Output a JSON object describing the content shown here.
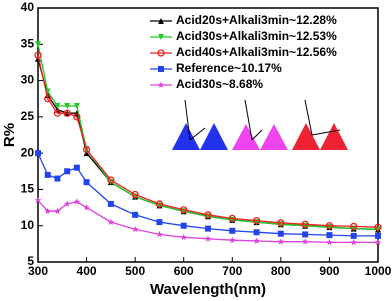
{
  "chart_data": {
    "type": "line",
    "x_label": "Wavelength(nm)",
    "y_label": "R%",
    "x": [
      300,
      320,
      340,
      360,
      380,
      400,
      450,
      500,
      550,
      600,
      650,
      700,
      750,
      800,
      850,
      900,
      950,
      1000
    ],
    "series": [
      {
        "name": "Acid20s+Alkali3min~12.28%",
        "color": "#000000",
        "marker": "triangle-up",
        "values": [
          33,
          28,
          26,
          25.5,
          25.5,
          20,
          16,
          14,
          12.8,
          12,
          11.3,
          10.8,
          10.5,
          10.2,
          10,
          9.8,
          9.6,
          9.5
        ]
      },
      {
        "name": "Acid30s+Alkali3min~12.53%",
        "color": "#22cc22",
        "marker": "triangle-down",
        "values": [
          35,
          28.5,
          26.5,
          26.5,
          26.5,
          20.5,
          16,
          14,
          12.8,
          12,
          11.3,
          10.8,
          10.5,
          10.2,
          10,
          9.8,
          9.6,
          9.5
        ]
      },
      {
        "name": "Acid40s+Alkali3min~12.56%",
        "color": "#ee2222",
        "marker": "circle",
        "values": [
          33.5,
          27.5,
          25.5,
          25.5,
          25,
          20.5,
          16.3,
          14.3,
          13,
          12.2,
          11.5,
          11,
          10.7,
          10.4,
          10.2,
          10,
          9.9,
          9.8
        ]
      },
      {
        "name": "Reference~10.17%",
        "color": "#2244ee",
        "marker": "square",
        "values": [
          20,
          17,
          16.5,
          17.5,
          18,
          16,
          13,
          11.5,
          10.5,
          10,
          9.6,
          9.3,
          9.1,
          8.9,
          8.8,
          8.7,
          8.6,
          8.6
        ]
      },
      {
        "name": "Acid30s~8.68%",
        "color": "#dd44dd",
        "marker": "star",
        "values": [
          13.5,
          12,
          12,
          13,
          13.3,
          12.5,
          10.5,
          9.5,
          8.8,
          8.4,
          8.2,
          8.0,
          7.9,
          7.8,
          7.8,
          7.7,
          7.7,
          7.7
        ]
      }
    ],
    "xlim": [
      300,
      1000
    ],
    "xticks": [
      300,
      400,
      500,
      600,
      700,
      800,
      900,
      1000
    ],
    "ylim": [
      5,
      40
    ],
    "yticks": [
      5,
      10,
      15,
      20,
      25,
      30,
      35,
      40
    ],
    "legend": "upper right"
  }
}
